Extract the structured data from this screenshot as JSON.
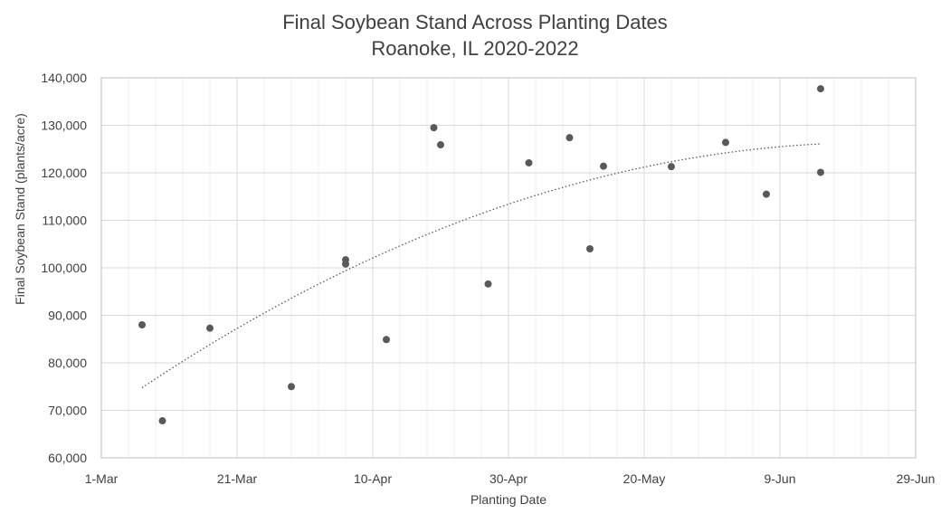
{
  "chart_data": {
    "type": "scatter",
    "title": "Final Soybean Stand Across Planting Dates",
    "subtitle": "Roanoke, IL 2020-2022",
    "xlabel": "Planting Date",
    "ylabel": "Final Soybean Stand (plants/acre)",
    "x_ticks": [
      "1-Mar",
      "21-Mar",
      "10-Apr",
      "30-Apr",
      "20-May",
      "9-Jun",
      "29-Jun"
    ],
    "y_ticks": [
      "60,000",
      "70,000",
      "80,000",
      "90,000",
      "100,000",
      "110,000",
      "120,000",
      "130,000",
      "140,000"
    ],
    "xlim": [
      "1-Mar",
      "29-Jun"
    ],
    "ylim": [
      60000,
      140000
    ],
    "grid": true,
    "trendline": "polynomial",
    "colors": {
      "points": "#595959",
      "trendline": "#595959",
      "grid_major": "#d9d9d9",
      "grid_minor": "#eeeeee",
      "axis": "#bfbfbf"
    },
    "points": [
      {
        "x": "7-Mar",
        "y": 88000
      },
      {
        "x": "10-Mar",
        "y": 67800
      },
      {
        "x": "17-Mar",
        "y": 87300
      },
      {
        "x": "29-Mar",
        "y": 75000
      },
      {
        "x": "6-Apr",
        "y": 101700
      },
      {
        "x": "6-Apr",
        "y": 100800
      },
      {
        "x": "12-Apr",
        "y": 84900
      },
      {
        "x": "19-Apr",
        "y": 129500
      },
      {
        "x": "20-Apr",
        "y": 125900
      },
      {
        "x": "27-Apr",
        "y": 96600
      },
      {
        "x": "3-May",
        "y": 122100
      },
      {
        "x": "9-May",
        "y": 127400
      },
      {
        "x": "12-May",
        "y": 104000
      },
      {
        "x": "14-May",
        "y": 121400
      },
      {
        "x": "24-May",
        "y": 121300
      },
      {
        "x": "1-Jun",
        "y": 126400
      },
      {
        "x": "7-Jun",
        "y": 115500
      },
      {
        "x": "15-Jun",
        "y": 137700
      },
      {
        "x": "15-Jun",
        "y": 120100
      }
    ]
  }
}
